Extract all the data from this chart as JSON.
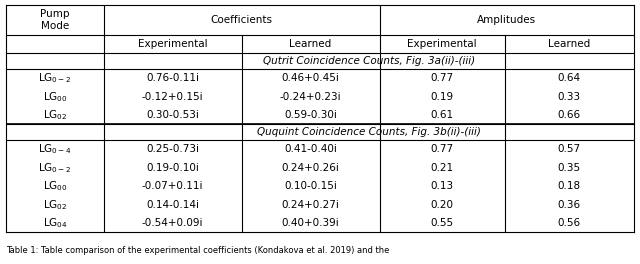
{
  "col_headers_top": [
    "Pump\nMode",
    "Coefficients",
    "Amplitudes"
  ],
  "col_headers_sub": [
    "",
    "Experimental",
    "Learned",
    "Experimental",
    "Learned"
  ],
  "section1_title": "Qutrit Coincidence Counts, Fig. 3a(ii)-(iii)",
  "section1_rows": [
    [
      "LG$_{0-2}$",
      "0.76-0.11i",
      "0.46+0.45i",
      "0.77",
      "0.64"
    ],
    [
      "LG$_{00}$",
      "-0.12+0.15i",
      "-0.24+0.23i",
      "0.19",
      "0.33"
    ],
    [
      "LG$_{02}$",
      "0.30-0.53i",
      "0.59-0.30i",
      "0.61",
      "0.66"
    ]
  ],
  "section2_title": "Ququint Coincidence Counts, Fig. 3b(ii)-(iii)",
  "section2_rows": [
    [
      "LG$_{0-4}$",
      "0.25-0.73i",
      "0.41-0.40i",
      "0.77",
      "0.57"
    ],
    [
      "LG$_{0-2}$",
      "0.19-0.10i",
      "0.24+0.26i",
      "0.21",
      "0.35"
    ],
    [
      "LG$_{00}$",
      "-0.07+0.11i",
      "0.10-0.15i",
      "0.13",
      "0.18"
    ],
    [
      "LG$_{02}$",
      "0.14-0.14i",
      "0.24+0.27i",
      "0.20",
      "0.36"
    ],
    [
      "LG$_{04}$",
      "-0.54+0.09i",
      "0.40+0.39i",
      "0.55",
      "0.56"
    ]
  ],
  "background_color": "#ffffff",
  "font_size": 7.5,
  "caption": "Table 1: Table comparison of the experimental coefficients (Kondakova et al. 2019) and the"
}
